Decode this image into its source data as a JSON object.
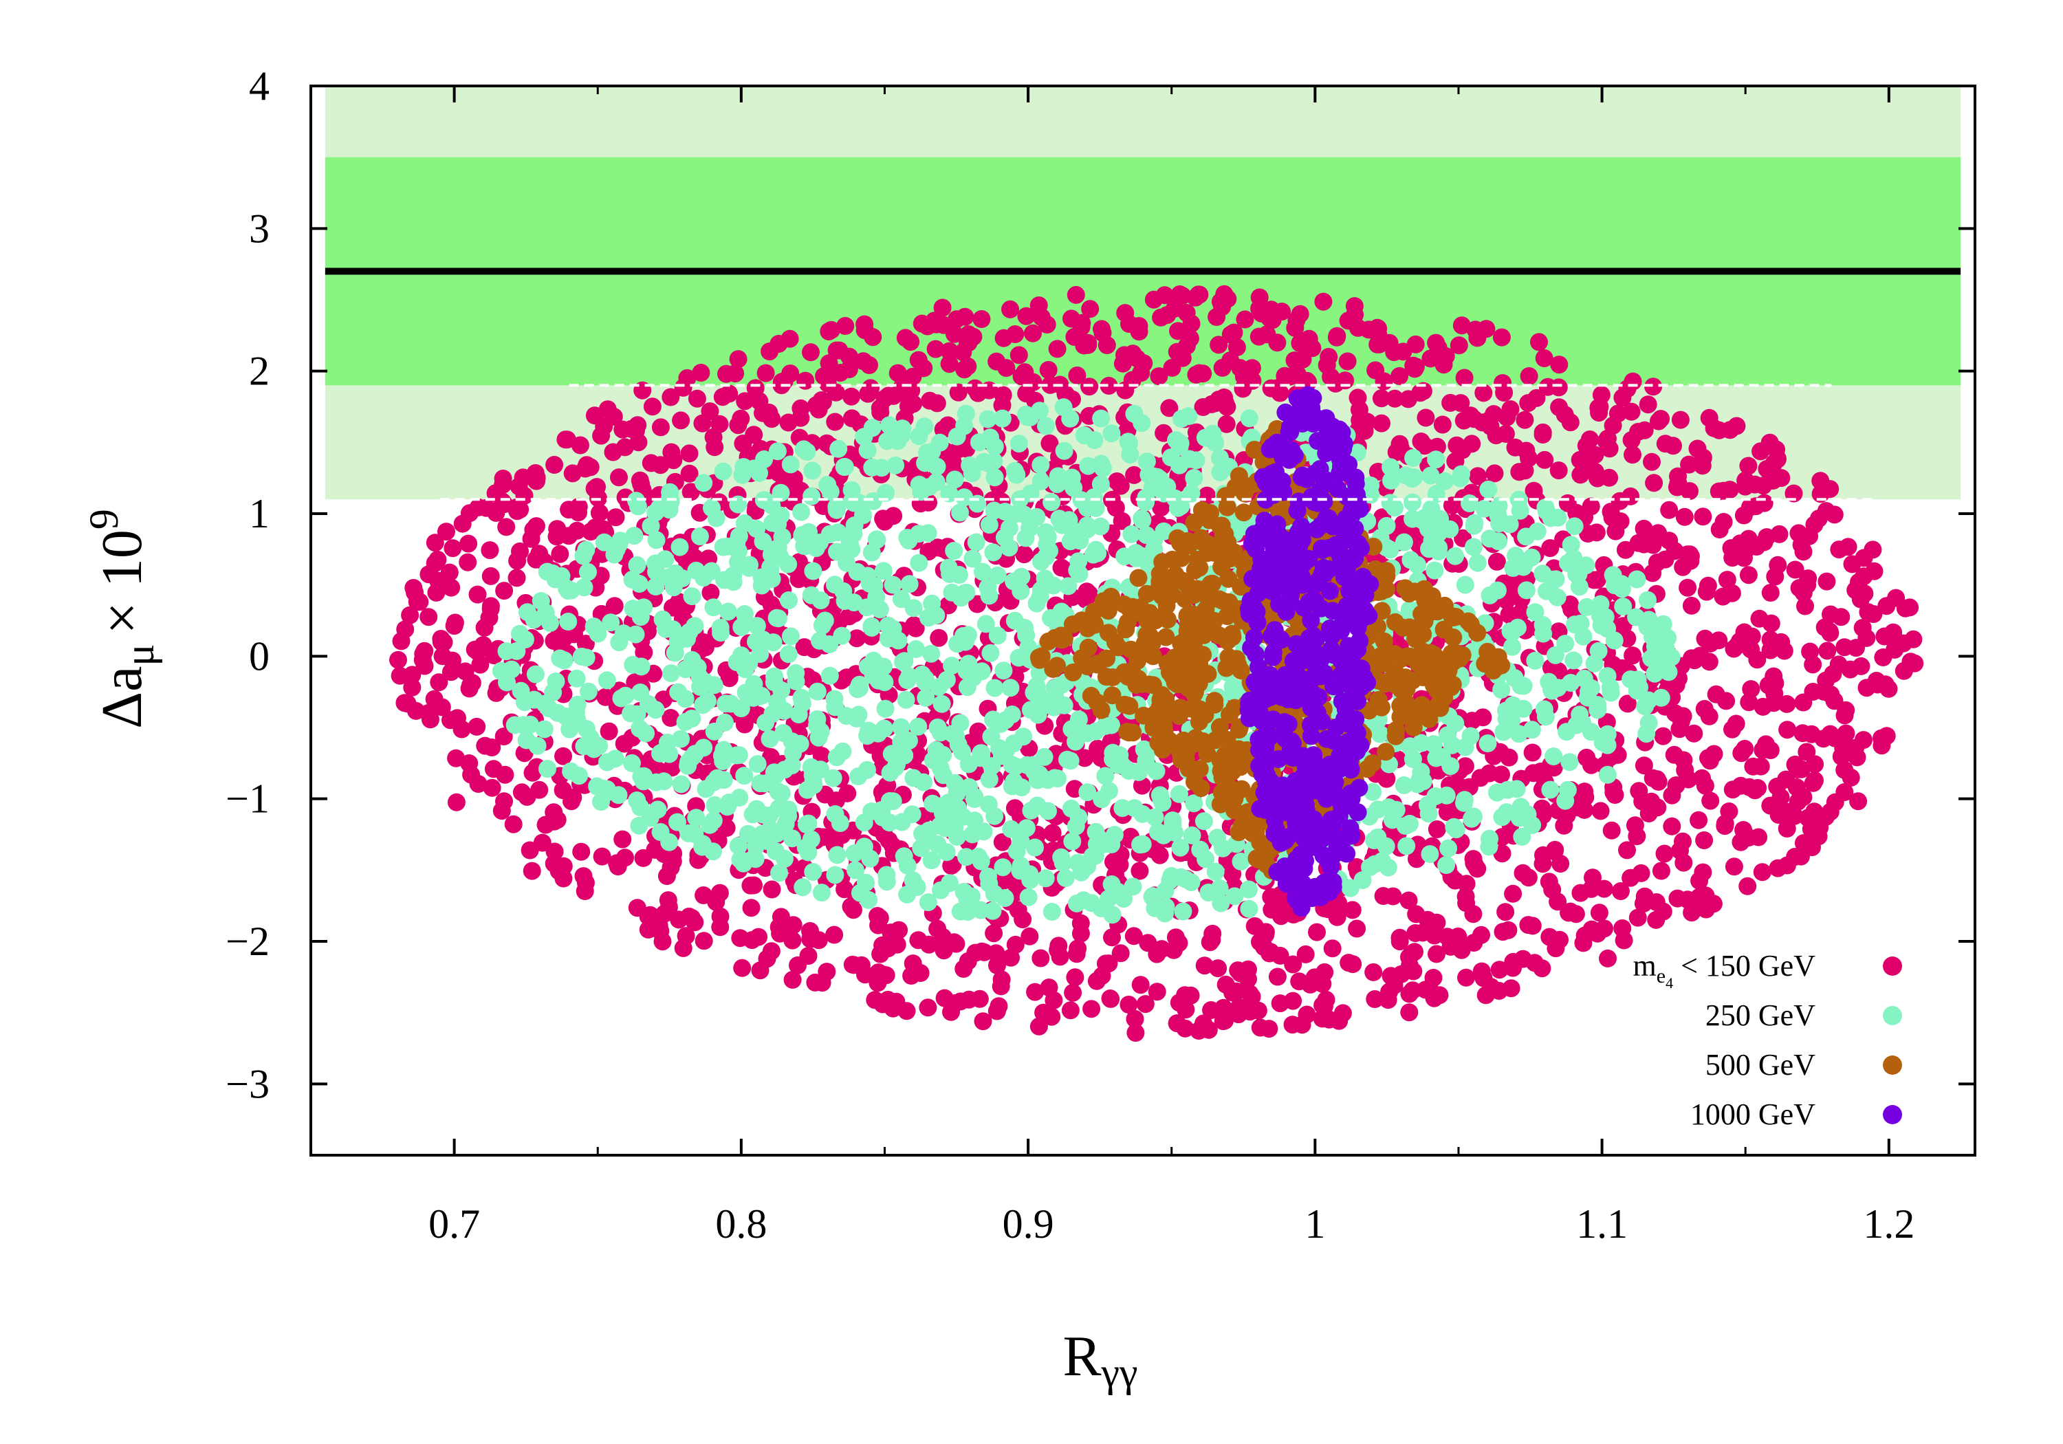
{
  "chart_data": {
    "type": "scatter",
    "title": "",
    "xlabel": {
      "main": "R",
      "sub": "γγ"
    },
    "ylabel": {
      "prefix": "Δa",
      "sub": "μ",
      "times": "× 10",
      "sup": "9"
    },
    "xlim": [
      0.65,
      1.23
    ],
    "ylim": [
      -3.5,
      4
    ],
    "x_ticks": [
      {
        "value": 0.7,
        "label": "0.7"
      },
      {
        "value": 0.8,
        "label": "0.8"
      },
      {
        "value": 0.9,
        "label": "0.9"
      },
      {
        "value": 1.0,
        "label": "1"
      },
      {
        "value": 1.1,
        "label": "1.1"
      },
      {
        "value": 1.2,
        "label": "1.2"
      }
    ],
    "y_ticks": [
      {
        "value": -3,
        "label": "−3"
      },
      {
        "value": -2,
        "label": "−2"
      },
      {
        "value": -1,
        "label": "−1"
      },
      {
        "value": 0,
        "label": "0"
      },
      {
        "value": 1,
        "label": "1"
      },
      {
        "value": 2,
        "label": "2"
      },
      {
        "value": 3,
        "label": "3"
      },
      {
        "value": 4,
        "label": "4"
      }
    ],
    "bands": [
      {
        "y": [
          1.1,
          4.0
        ],
        "color": "#d7f3d0",
        "x": [
          0.655,
          1.225
        ]
      },
      {
        "y": [
          1.9,
          3.5
        ],
        "color": "#87f580",
        "x": [
          0.655,
          1.225
        ]
      }
    ],
    "central_line": {
      "y": 2.7,
      "color": "#000000"
    },
    "dashed_lines": [
      {
        "y": 1.9,
        "x": [
          0.74,
          1.18
        ],
        "color": "#ffffff"
      },
      {
        "y": 1.1,
        "x": [
          0.695,
          1.195
        ],
        "color": "#ffffff"
      }
    ],
    "series": [
      {
        "name": "m_e4 < 150 GeV",
        "color": "#e0006c",
        "shape": "ellipse",
        "center": [
          0.945,
          0.0
        ],
        "rx": 0.265,
        "ry_up": 2.55,
        "ry_down": 2.65,
        "count": 2600
      },
      {
        "name": "250 GeV",
        "color": "#85f4c2",
        "shape": "ellipse",
        "center": [
          0.92,
          -0.1
        ],
        "rx": 0.205,
        "ry_up": 1.85,
        "ry_down": 1.75,
        "count": 1500
      },
      {
        "name": "500 GeV",
        "color": "#b5600d",
        "shape": "diamond",
        "center": [
          0.985,
          0.0
        ],
        "rx": 0.085,
        "ry_up": 1.7,
        "ry_down": 1.65,
        "count": 650
      },
      {
        "name": "1000 GeV",
        "color": "#7600e0",
        "shape": "ellipse",
        "center": [
          0.998,
          0.02
        ],
        "rx": 0.022,
        "ry_up": 1.85,
        "ry_down": 1.8,
        "count": 500
      }
    ],
    "legend": {
      "position": "bottom-right",
      "entries": [
        {
          "main": "m",
          "sub": "e",
          "subsub": "4",
          "rest": " < 150 GeV",
          "color": "#e0006c"
        },
        {
          "main": "250 GeV",
          "color": "#85f4c2"
        },
        {
          "main": "500 GeV",
          "color": "#b5600d"
        },
        {
          "main": "1000 GeV",
          "color": "#7600e0"
        }
      ]
    }
  }
}
